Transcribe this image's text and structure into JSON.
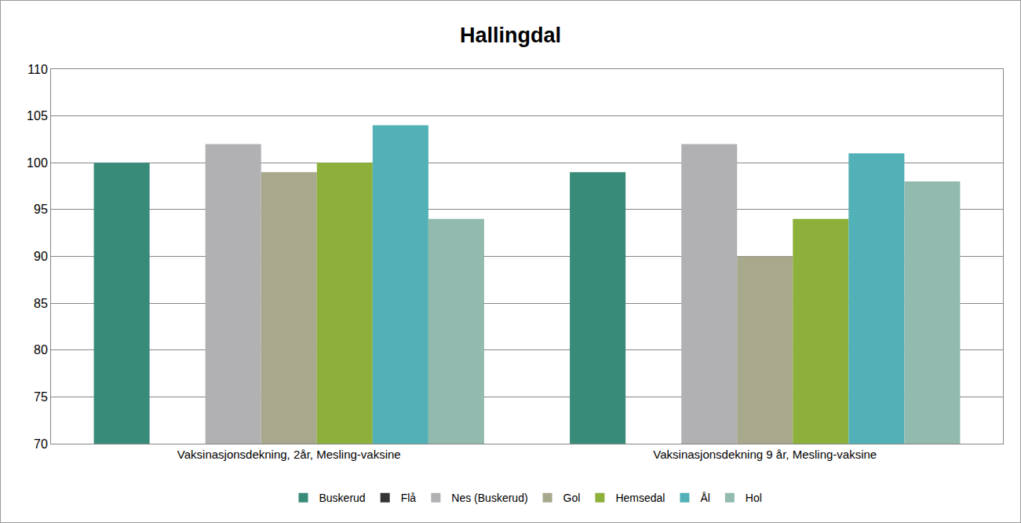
{
  "chart_data": {
    "type": "bar",
    "title": "Hallingdal",
    "categories": [
      "Vaksinasjonsdekning, 2år, Mesling-vaksine",
      "Vaksinasjonsdekning 9 år, Mesling-vaksine"
    ],
    "series": [
      {
        "name": "Buskerud",
        "color": "#388a79",
        "values": [
          100,
          99
        ]
      },
      {
        "name": "Flå",
        "color": "#333333",
        "values": [
          null,
          null
        ]
      },
      {
        "name": "Nes (Buskerud)",
        "color": "#b1b1b3",
        "values": [
          102,
          102
        ]
      },
      {
        "name": "Gol",
        "color": "#a8a88c",
        "values": [
          99,
          90
        ]
      },
      {
        "name": "Hemsedal",
        "color": "#8db03a",
        "values": [
          100,
          94
        ]
      },
      {
        "name": "Ål",
        "color": "#52b1b6",
        "values": [
          104,
          101
        ]
      },
      {
        "name": "Hol",
        "color": "#93baae",
        "values": [
          94,
          98
        ]
      }
    ],
    "ylim": [
      70,
      110
    ],
    "yticks": [
      70,
      75,
      80,
      85,
      90,
      95,
      100,
      105,
      110
    ],
    "grid": true,
    "legend": "bottom"
  }
}
